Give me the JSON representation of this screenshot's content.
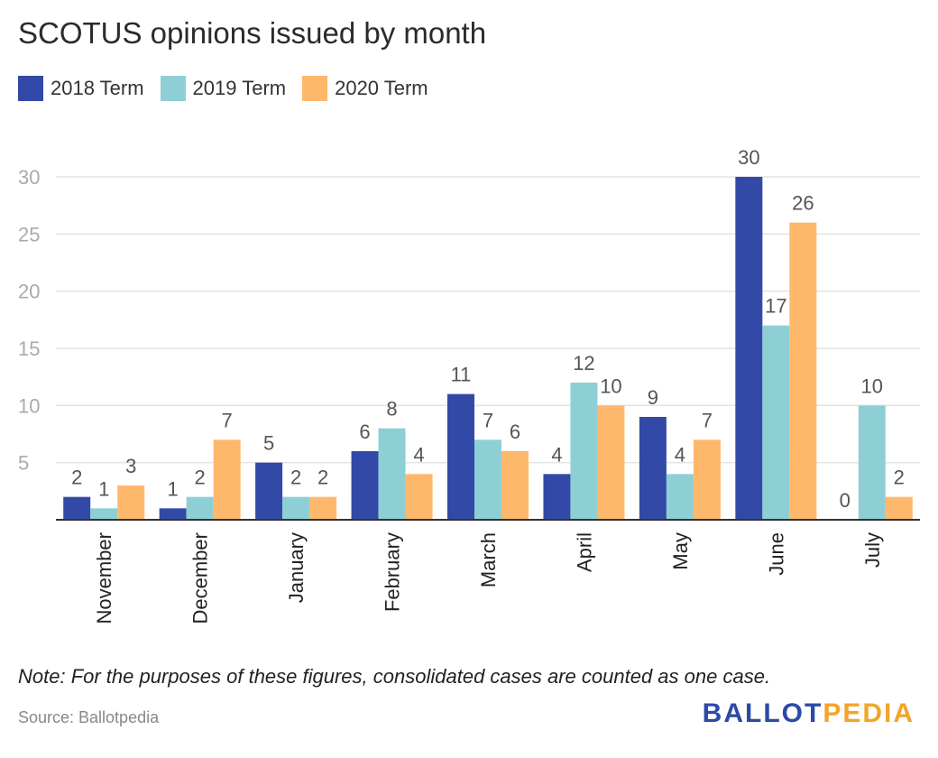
{
  "title": "SCOTUS opinions issued by month",
  "note": "Note: For the purposes of these figures, consolidated cases are counted as one case.",
  "source": "Source: Ballotpedia",
  "logo": {
    "part1": "BALLOT",
    "part2": "PEDIA"
  },
  "chart_data": {
    "type": "bar",
    "title": "SCOTUS opinions issued by month",
    "xlabel": "",
    "ylabel": "",
    "ylim": [
      0,
      30
    ],
    "yticks": [
      5,
      10,
      15,
      20,
      25,
      30
    ],
    "grid": true,
    "legend_position": "top-left",
    "categories": [
      "November",
      "December",
      "January",
      "February",
      "March",
      "April",
      "May",
      "June",
      "July"
    ],
    "series": [
      {
        "name": "2018 Term",
        "color": "#3349a8",
        "values": [
          2,
          1,
          5,
          6,
          11,
          4,
          9,
          30,
          0
        ]
      },
      {
        "name": "2019 Term",
        "color": "#8ecfd6",
        "values": [
          1,
          2,
          2,
          8,
          7,
          12,
          4,
          17,
          10
        ]
      },
      {
        "name": "2020 Term",
        "color": "#fdb86b",
        "values": [
          3,
          7,
          2,
          4,
          6,
          10,
          7,
          26,
          2
        ]
      }
    ]
  }
}
